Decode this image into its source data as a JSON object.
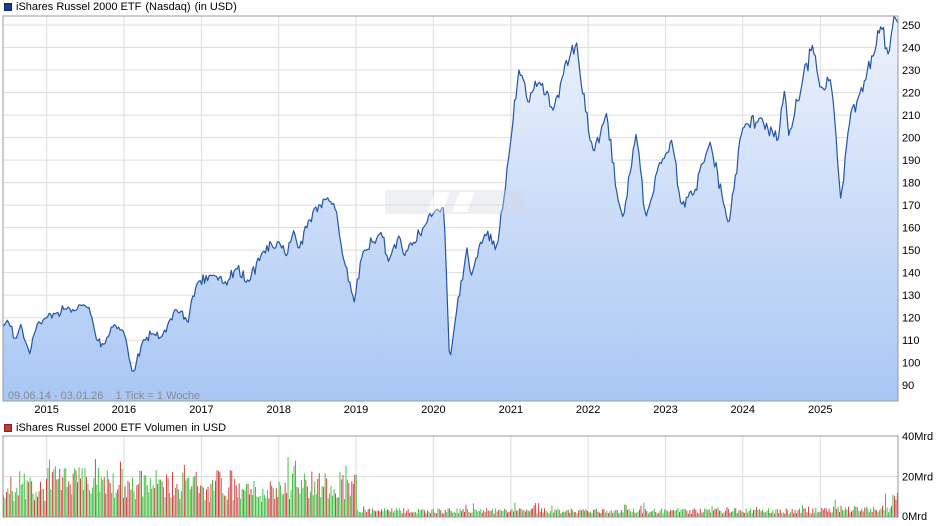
{
  "colors": {
    "price_line": "#2255aa",
    "price_fill_top": "#eef3fc",
    "price_fill_bottom": "#a9c7f4",
    "volume_up": "#33bb33",
    "volume_down": "#cc3333",
    "grid": "#dddddd",
    "axis": "#888888"
  },
  "chart_data": [
    {
      "type": "area",
      "legend": {
        "name": "iShares Russel 2000 ETF",
        "exchange": "(Nasdaq)",
        "currency": "(in USD)"
      },
      "info_text": "09.06.14 - 03.01.26    1 Tick = 1 Woche",
      "x_range": [
        "2014-06-09",
        "2026-01-03"
      ],
      "x_tick_labels": [
        "2015",
        "2016",
        "2017",
        "2018",
        "2019",
        "2020",
        "2021",
        "2022",
        "2023",
        "2024",
        "2025"
      ],
      "y_tick_labels": [
        "90",
        "100",
        "110",
        "120",
        "130",
        "140",
        "150",
        "160",
        "170",
        "180",
        "190",
        "200",
        "210",
        "220",
        "230",
        "240",
        "250"
      ],
      "ylim": [
        83,
        254
      ],
      "grid": true,
      "series": [
        {
          "name": "iShares Russel 2000 ETF",
          "points": [
            [
              "2014-06-09",
              116
            ],
            [
              "2014-07-01",
              119
            ],
            [
              "2014-08-08",
              110
            ],
            [
              "2014-09-01",
              117
            ],
            [
              "2014-10-13",
              104
            ],
            [
              "2014-11-20",
              118
            ],
            [
              "2014-12-31",
              120
            ],
            [
              "2015-02-15",
              122
            ],
            [
              "2015-03-31",
              124
            ],
            [
              "2015-05-15",
              123
            ],
            [
              "2015-06-25",
              126
            ],
            [
              "2015-08-01",
              121
            ],
            [
              "2015-08-25",
              110
            ],
            [
              "2015-10-01",
              108
            ],
            [
              "2015-11-15",
              117
            ],
            [
              "2015-12-31",
              114
            ],
            [
              "2016-02-11",
              95
            ],
            [
              "2016-03-31",
              110
            ],
            [
              "2016-05-15",
              113
            ],
            [
              "2016-06-24",
              111
            ],
            [
              "2016-08-31",
              124
            ],
            [
              "2016-10-31",
              118
            ],
            [
              "2016-11-15",
              128
            ],
            [
              "2016-12-15",
              136
            ],
            [
              "2017-03-01",
              139
            ],
            [
              "2017-04-15",
              135
            ],
            [
              "2017-06-15",
              142
            ],
            [
              "2017-08-15",
              136
            ],
            [
              "2017-10-15",
              149
            ],
            [
              "2017-12-31",
              154
            ],
            [
              "2018-02-08",
              147
            ],
            [
              "2018-03-13",
              159
            ],
            [
              "2018-04-05",
              150
            ],
            [
              "2018-06-20",
              169
            ],
            [
              "2018-08-31",
              172
            ],
            [
              "2018-10-01",
              167
            ],
            [
              "2018-10-29",
              148
            ],
            [
              "2018-12-24",
              127
            ],
            [
              "2019-02-01",
              149
            ],
            [
              "2019-04-30",
              158
            ],
            [
              "2019-06-03",
              145
            ],
            [
              "2019-07-25",
              157
            ],
            [
              "2019-08-15",
              147
            ],
            [
              "2019-11-15",
              160
            ],
            [
              "2019-12-31",
              166
            ],
            [
              "2020-01-15",
              168
            ],
            [
              "2020-02-20",
              169
            ],
            [
              "2020-03-18",
              100
            ],
            [
              "2020-04-15",
              120
            ],
            [
              "2020-06-08",
              151
            ],
            [
              "2020-06-26",
              138
            ],
            [
              "2020-08-31",
              157
            ],
            [
              "2020-10-30",
              152
            ],
            [
              "2020-12-31",
              198
            ],
            [
              "2021-02-08",
              230
            ],
            [
              "2021-03-25",
              215
            ],
            [
              "2021-05-15",
              225
            ],
            [
              "2021-07-20",
              212
            ],
            [
              "2021-09-01",
              227
            ],
            [
              "2021-11-08",
              242
            ],
            [
              "2021-12-01",
              222
            ],
            [
              "2022-01-27",
              193
            ],
            [
              "2022-03-29",
              211
            ],
            [
              "2022-05-20",
              173
            ],
            [
              "2022-06-16",
              164
            ],
            [
              "2022-08-16",
              202
            ],
            [
              "2022-09-30",
              164
            ],
            [
              "2022-11-30",
              188
            ],
            [
              "2023-01-31",
              199
            ],
            [
              "2023-03-15",
              170
            ],
            [
              "2023-05-15",
              175
            ],
            [
              "2023-07-31",
              198
            ],
            [
              "2023-10-27",
              161
            ],
            [
              "2023-12-29",
              204
            ],
            [
              "2024-03-28",
              209
            ],
            [
              "2024-06-15",
              198
            ],
            [
              "2024-07-17",
              222
            ],
            [
              "2024-08-05",
              201
            ],
            [
              "2024-11-25",
              241
            ],
            [
              "2024-12-31",
              222
            ],
            [
              "2025-02-20",
              226
            ],
            [
              "2025-04-08",
              172
            ],
            [
              "2025-05-15",
              205
            ],
            [
              "2025-06-30",
              218
            ],
            [
              "2025-09-15",
              238
            ],
            [
              "2025-10-15",
              250
            ],
            [
              "2025-11-20",
              236
            ],
            [
              "2025-12-15",
              254
            ],
            [
              "2026-01-03",
              251
            ]
          ]
        }
      ]
    },
    {
      "type": "bar",
      "legend": {
        "name": "iShares Russel 2000 ETF Volumen",
        "currency": "in USD"
      },
      "y_tick_labels": [
        "0Mrd",
        "20Mrd",
        "40Mrd"
      ],
      "ylim": [
        0,
        40
      ],
      "unit": "Mrd",
      "grid": true,
      "x_range": [
        "2014-06-09",
        "2026-01-03"
      ],
      "volume_by_year": [
        {
          "year": 2014,
          "avg": 14,
          "max": 24
        },
        {
          "year": 2015,
          "avg": 17,
          "max": 30
        },
        {
          "year": 2016,
          "avg": 16,
          "max": 29
        },
        {
          "year": 2017,
          "avg": 13,
          "max": 24
        },
        {
          "year": 2018,
          "avg": 16,
          "max": 30
        },
        {
          "year": 2019,
          "avg": 3,
          "max": 6
        },
        {
          "year": 2020,
          "avg": 3,
          "max": 7
        },
        {
          "year": 2021,
          "avg": 3,
          "max": 8
        },
        {
          "year": 2022,
          "avg": 3,
          "max": 8
        },
        {
          "year": 2023,
          "avg": 3,
          "max": 6
        },
        {
          "year": 2024,
          "avg": 3,
          "max": 6
        },
        {
          "year": 2025,
          "avg": 4,
          "max": 12
        }
      ]
    }
  ]
}
